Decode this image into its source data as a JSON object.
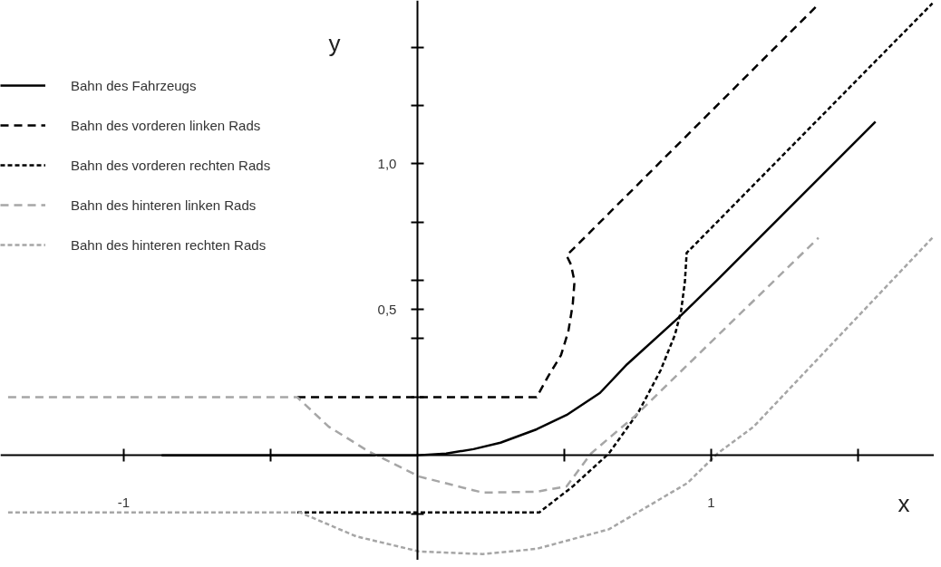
{
  "chart_data": {
    "type": "line",
    "xlabel": "x",
    "ylabel": "y",
    "xlim": [
      -1.42,
      1.76
    ],
    "ylim": [
      -0.36,
      1.56
    ],
    "xticks": [
      {
        "value": -1,
        "label": "-1"
      },
      {
        "value": -0.5,
        "label": null
      },
      {
        "value": 0.5,
        "label": null
      },
      {
        "value": 1,
        "label": "1"
      },
      {
        "value": 1.5,
        "label": null
      }
    ],
    "yticks": [
      {
        "value": -0.2,
        "label": null
      },
      {
        "value": 0.2,
        "label": null
      },
      {
        "value": 0.4,
        "label": null
      },
      {
        "value": 0.5,
        "label": "0,5"
      },
      {
        "value": 0.6,
        "label": null
      },
      {
        "value": 0.8,
        "label": null
      },
      {
        "value": 1.0,
        "label": "1,0"
      },
      {
        "value": 1.2,
        "label": null
      },
      {
        "value": 1.4,
        "label": null
      }
    ],
    "grid": false,
    "legend": "top left",
    "series": [
      {
        "name": "Bahn des Fahrzeugs",
        "color": "#000000",
        "line_style": "solid",
        "x": [
          -0.871,
          0,
          0.098,
          0.191,
          0.283,
          0.406,
          0.508,
          0.622,
          0.714,
          0.898,
          1.022,
          1.56
        ],
        "values": [
          0,
          0,
          0.006,
          0.021,
          0.043,
          0.089,
          0.138,
          0.214,
          0.312,
          0.48,
          0.602,
          1.144
        ]
      },
      {
        "name": "Bahn des vorderen linken Rads",
        "color": "#000000",
        "line_style": "dashed",
        "x": [
          -0.409,
          0.406,
          0.446,
          0.489,
          0.514,
          0.529,
          0.535,
          0.523,
          0.508,
          1.36
        ],
        "values": [
          0.199,
          0.199,
          0.272,
          0.343,
          0.425,
          0.517,
          0.596,
          0.654,
          0.685,
          1.541
        ]
      },
      {
        "name": "Bahn des vorderen rechten Rads",
        "color": "#000000",
        "line_style": "dotted",
        "x": [
          -0.409,
          0.415,
          0.529,
          0.652,
          0.754,
          0.828,
          0.877,
          0.898,
          0.911,
          0.917,
          1.754
        ],
        "values": [
          -0.196,
          -0.196,
          -0.107,
          0.006,
          0.15,
          0.291,
          0.413,
          0.495,
          0.596,
          0.694,
          1.55
        ]
      },
      {
        "name": "Bahn des hinteren linken Rads",
        "color": "#a6a6a6",
        "line_style": "dashed",
        "x": [
          -1.394,
          -0.409,
          -0.302,
          -0.169,
          0.006,
          0.222,
          0.406,
          0.508,
          0.591,
          0.745,
          1.022,
          1.366
        ],
        "values": [
          0.199,
          0.199,
          0.098,
          0.015,
          -0.073,
          -0.128,
          -0.125,
          -0.107,
          0.006,
          0.138,
          0.41,
          0.746
        ]
      },
      {
        "name": "Bahn des hinteren rechten Rads",
        "color": "#a6a6a6",
        "line_style": "dotted",
        "x": [
          -1.394,
          -0.4,
          -0.209,
          0.006,
          0.222,
          0.406,
          0.652,
          0.92,
          1.022,
          1.145,
          1.754
        ],
        "values": [
          -0.196,
          -0.196,
          -0.278,
          -0.33,
          -0.339,
          -0.321,
          -0.254,
          -0.095,
          0.006,
          0.098,
          0.746
        ]
      }
    ]
  }
}
